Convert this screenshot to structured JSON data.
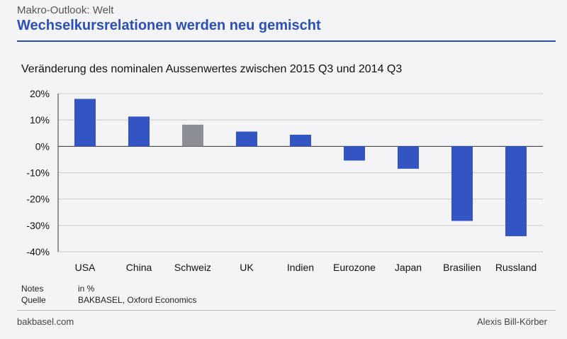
{
  "header": {
    "kicker": "Makro-Outlook: Welt",
    "headline": "Wechselkursrelationen werden neu gemischt"
  },
  "chart_data": {
    "type": "bar",
    "title": "Veränderung des nominalen Aussenwertes zwischen 2015 Q3 und 2014 Q3",
    "categories": [
      "USA",
      "China",
      "Schweiz",
      "UK",
      "Indien",
      "Eurozone",
      "Japan",
      "Brasilien",
      "Russland"
    ],
    "values": [
      18,
      11.3,
      8.2,
      5.6,
      4.4,
      -5.4,
      -8.5,
      -28.3,
      -34.1
    ],
    "highlight_category": "Schweiz",
    "colors": {
      "bar": "#3355c4",
      "highlight": "#8c8e96",
      "grid": "#cccccc",
      "axis": "#333333"
    },
    "ylim": [
      -40,
      20
    ],
    "yticks": [
      20,
      10,
      0,
      -10,
      -20,
      -30,
      -40
    ],
    "ytick_labels": [
      "20%",
      "10%",
      "0%",
      "-10%",
      "-20%",
      "-30%",
      "-40%"
    ],
    "grid": true,
    "xlabel": "",
    "ylabel": ""
  },
  "notes": {
    "notes_key": "Notes",
    "notes_value": "in %",
    "source_key": "Quelle",
    "source_value": "BAKBASEL, Oxford Economics"
  },
  "footer": {
    "left": "bakbasel.com",
    "right": "Alexis Bill-Körber"
  }
}
